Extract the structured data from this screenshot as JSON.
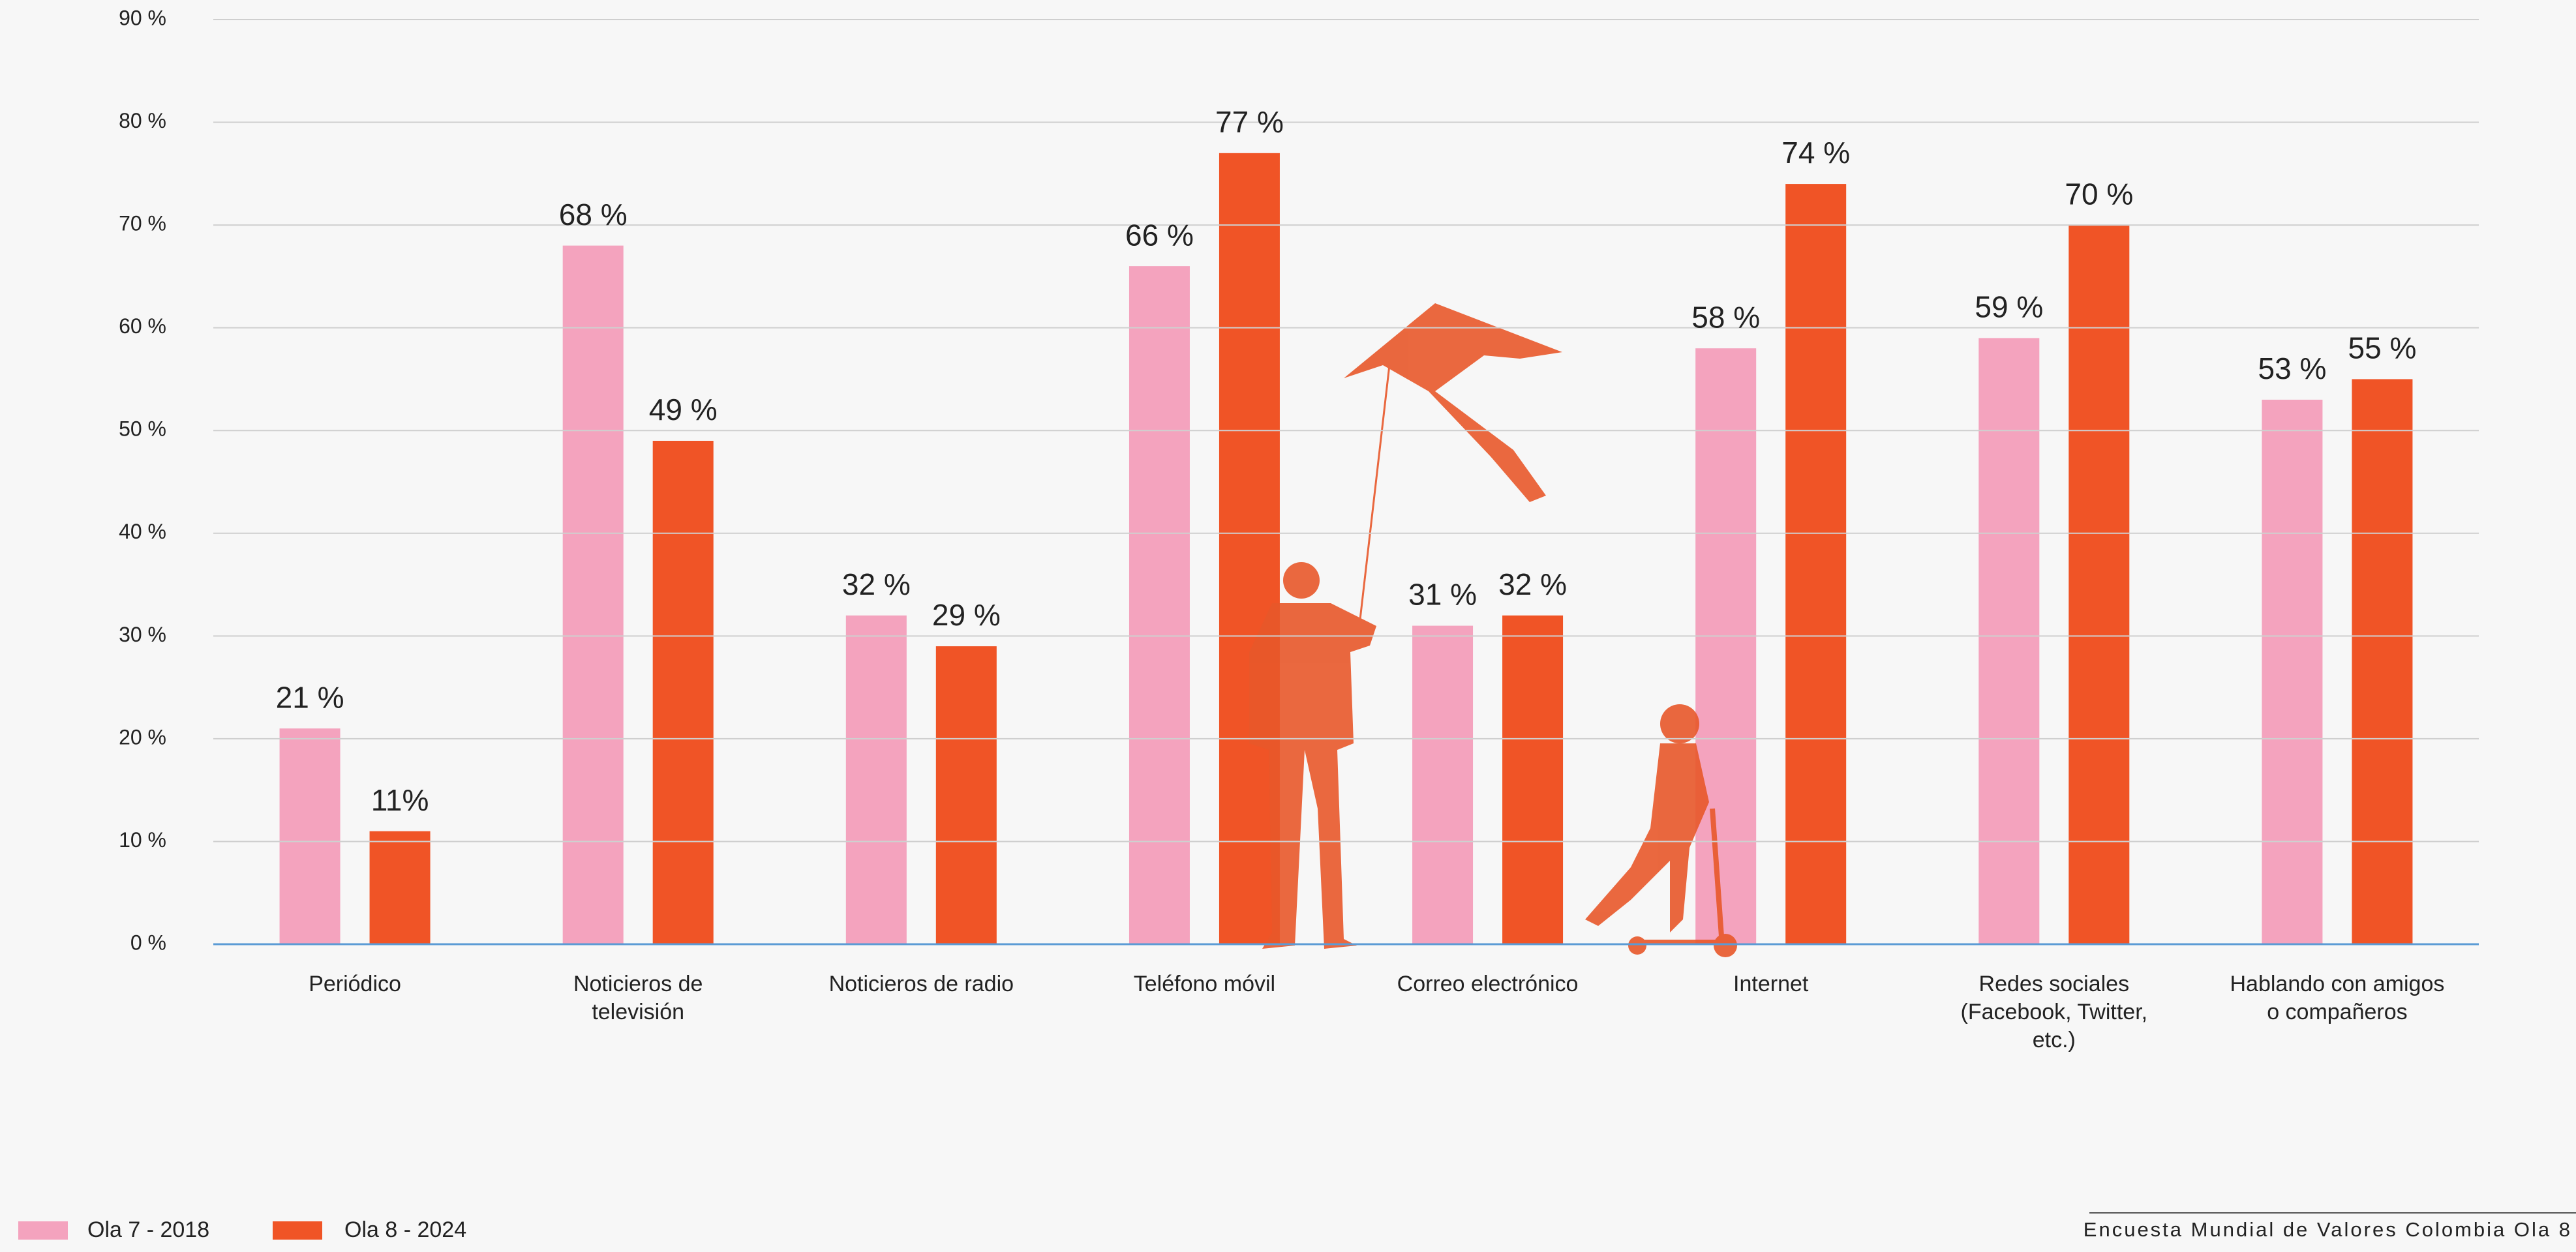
{
  "chart_data": {
    "type": "bar",
    "categories": [
      "Periódico",
      "Noticieros de televisión",
      "Noticieros de radio",
      "Teléfono móvil",
      "Correo electrónico",
      "Internet",
      "Redes sociales (Facebook, Twitter, etc.)",
      "Hablando con amigos o compañeros"
    ],
    "series": [
      {
        "name": "Ola 7 - 2018",
        "color": "#f4a3be",
        "values": [
          21,
          68,
          32,
          66,
          31,
          58,
          59,
          53
        ],
        "value_labels": [
          "21 %",
          "68 %",
          "32 %",
          "66 %",
          "31 %",
          "58 %",
          "59 %",
          "53 %"
        ]
      },
      {
        "name": "Ola 8 - 2024",
        "color": "#f05426",
        "values": [
          11,
          49,
          29,
          77,
          32,
          74,
          70,
          55
        ],
        "value_labels": [
          "11%",
          "49 %",
          "29 %",
          "77 %",
          "32 %",
          "74 %",
          "70 %",
          "55 %"
        ]
      }
    ],
    "ylim": [
      0,
      90
    ],
    "yticks": [
      {
        "value": 0,
        "label": "0 %"
      },
      {
        "value": 10,
        "label": "10 %"
      },
      {
        "value": 20,
        "label": "20 %"
      },
      {
        "value": 30,
        "label": "30 %"
      },
      {
        "value": 40,
        "label": "40 %"
      },
      {
        "value": 50,
        "label": "50 %"
      },
      {
        "value": 60,
        "label": "60 %"
      },
      {
        "value": 70,
        "label": "70 %"
      },
      {
        "value": 80,
        "label": "80 %"
      },
      {
        "value": 90,
        "label": "90 %"
      }
    ],
    "grid": true,
    "legend": "bottom-left",
    "source": "Encuesta Mundial de Valores Colombia Ola 8"
  }
}
